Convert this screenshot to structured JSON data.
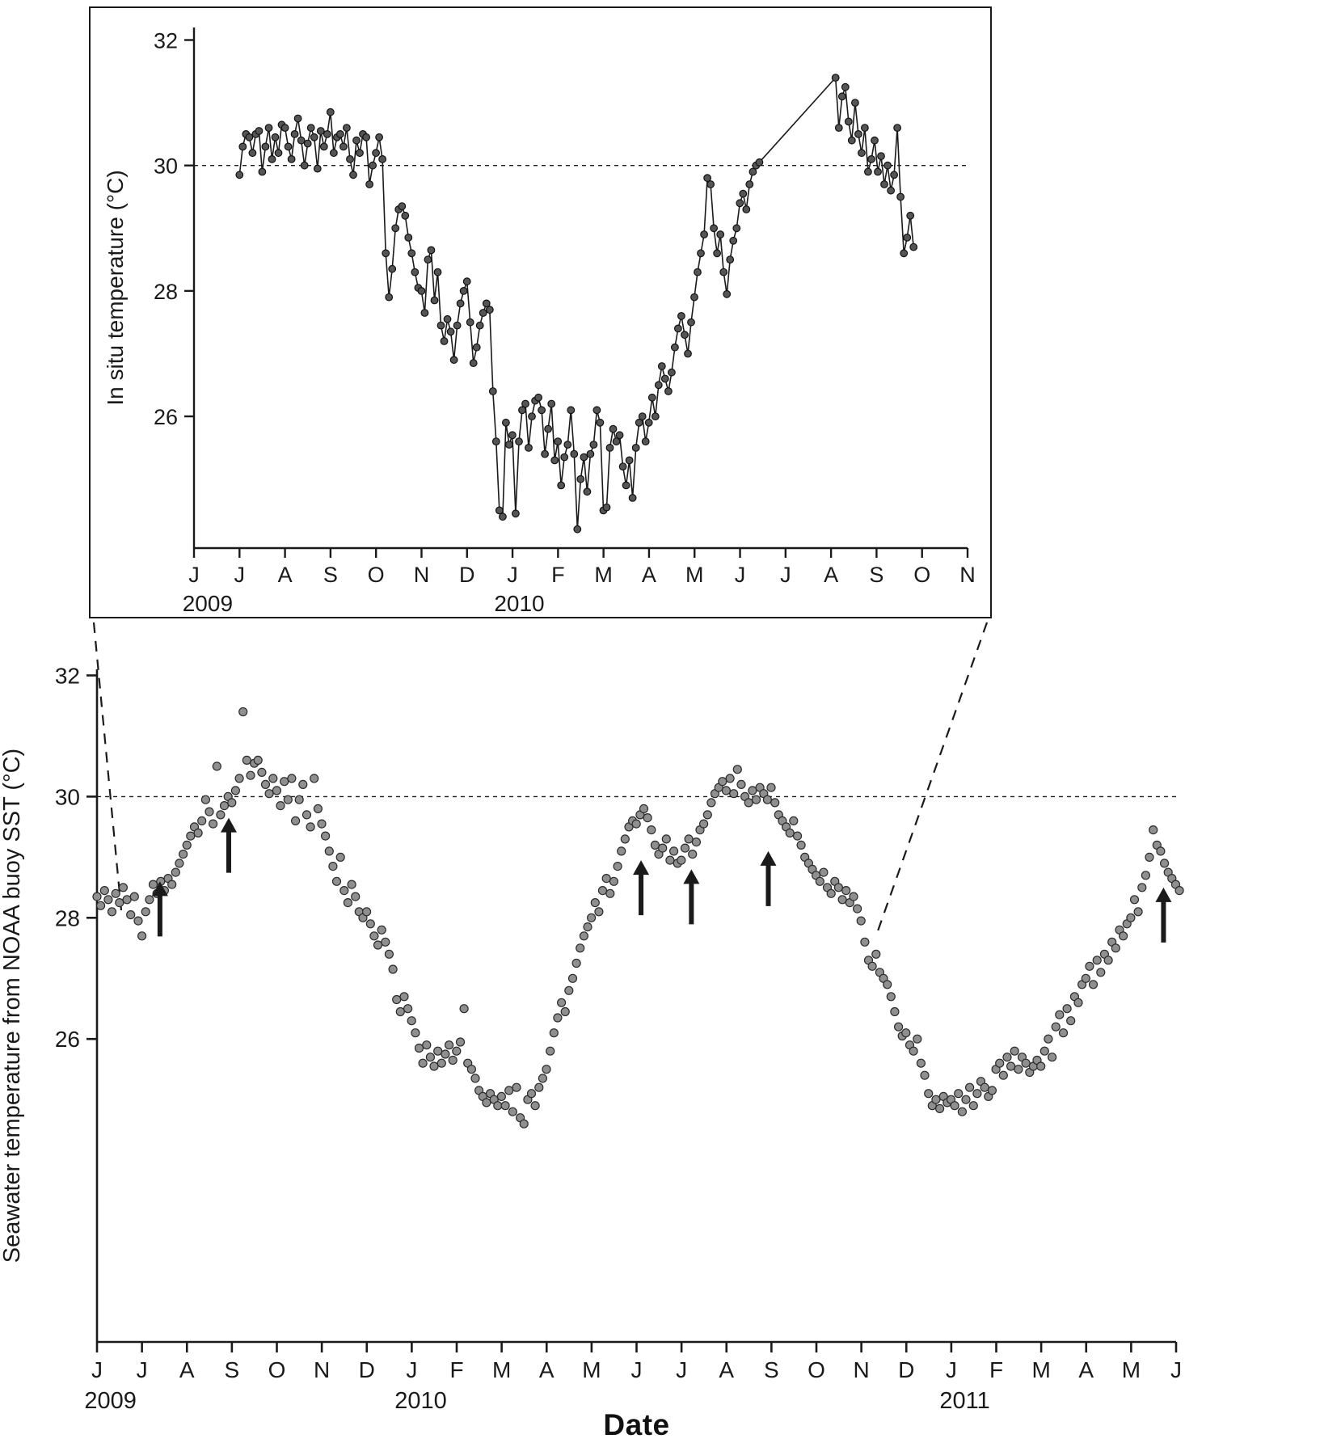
{
  "figure": {
    "xlabel": "Date",
    "background_color": "#ffffff",
    "ink_color": "#1a1a1a"
  },
  "chart_data": [
    {
      "id": "inset-in-situ",
      "type": "scatter",
      "connect_points": true,
      "title": "",
      "ylabel": "In situ temperature (°C)",
      "xlabel": "",
      "y_axis": {
        "ticks": [
          26,
          28,
          30,
          32
        ],
        "range": [
          23.9,
          32.2
        ]
      },
      "x_axis": {
        "domain": [
          0,
          17
        ],
        "tick_labels": [
          "J",
          "J",
          "A",
          "S",
          "O",
          "N",
          "D",
          "J",
          "F",
          "M",
          "A",
          "M",
          "J",
          "J",
          "A",
          "S",
          "O",
          "N"
        ],
        "year_labels": [
          {
            "label": "2009",
            "at_month": 0.3
          },
          {
            "label": "2010",
            "at_month": 7.15
          }
        ]
      },
      "reference_line_temp": 30,
      "style": {
        "ink": "#1a1a1a",
        "marker_fill": "#555555",
        "marker_stroke": "#111111"
      },
      "series": [
        {
          "name": "in-situ-temperature",
          "start_month": 1.0,
          "step_months": 0.0714,
          "values": [
            29.85,
            30.3,
            30.5,
            30.45,
            30.2,
            30.5,
            30.55,
            29.9,
            30.3,
            30.6,
            30.1,
            30.45,
            30.2,
            30.65,
            30.6,
            30.3,
            30.1,
            30.5,
            30.75,
            30.4,
            30.0,
            30.35,
            30.6,
            30.45,
            29.95,
            30.55,
            30.3,
            30.5,
            30.85,
            30.2,
            30.45,
            30.5,
            30.3,
            30.6,
            30.1,
            29.85,
            30.4,
            30.2,
            30.5,
            30.45,
            29.7,
            30.0,
            30.2,
            30.45,
            30.1,
            28.6,
            27.9,
            28.35,
            29.0,
            29.3,
            29.35,
            29.2,
            28.85,
            28.6,
            28.3,
            28.05,
            28.0,
            27.65,
            28.5,
            28.65,
            27.85,
            28.3,
            27.45,
            27.2,
            27.55,
            27.35,
            26.9,
            27.45,
            27.8,
            28.0,
            28.15,
            27.5,
            26.85,
            27.1,
            27.45,
            27.65,
            27.8,
            27.7,
            26.4,
            25.6,
            24.5,
            24.4,
            25.9,
            25.55,
            25.7,
            24.45,
            25.6,
            26.1,
            26.2,
            25.5,
            26.0,
            26.25,
            26.3,
            26.1,
            25.4,
            25.8,
            26.2,
            25.3,
            25.6,
            24.9,
            25.35,
            25.55,
            26.1,
            25.4,
            24.2,
            25.0,
            25.35,
            24.8,
            25.4,
            25.55,
            26.1,
            25.9,
            24.5,
            24.55,
            25.5,
            25.8,
            25.6,
            25.7,
            25.2,
            24.9,
            25.3,
            24.7,
            25.5,
            25.9,
            26.0,
            25.6,
            25.9,
            26.3,
            26.0,
            26.5,
            26.8,
            26.6,
            26.4,
            26.7,
            27.1,
            27.4,
            27.6,
            27.3,
            27.0,
            27.5,
            27.9,
            28.3,
            28.6,
            28.9,
            29.8,
            29.7,
            29.0,
            28.6,
            28.9,
            28.3,
            27.95,
            28.5,
            28.8,
            29.0,
            29.4,
            29.55,
            29.3,
            29.7,
            29.9,
            30.0,
            30.05
          ]
        },
        {
          "name": "in-situ-temperature-after-gap",
          "start_month": 14.1,
          "step_months": 0.0714,
          "values": [
            31.4,
            30.6,
            31.1,
            31.25,
            30.7,
            30.4,
            31.0,
            30.5,
            30.2,
            30.6,
            29.9,
            30.1,
            30.4,
            29.9,
            30.15,
            29.7,
            30.0,
            29.6,
            29.85,
            30.6,
            29.5,
            28.6,
            28.85,
            29.2,
            28.7
          ]
        }
      ]
    },
    {
      "id": "main-noaa-sst",
      "type": "scatter",
      "connect_points": false,
      "title": "",
      "ylabel": "Seawater temperature from NOAA buoy SST (°C)",
      "xlabel": "Date",
      "y_axis": {
        "ticks": [
          26,
          28,
          30,
          32
        ],
        "range": [
          21.0,
          32.1
        ]
      },
      "x_axis": {
        "domain": [
          0,
          24
        ],
        "tick_labels": [
          "J",
          "J",
          "A",
          "S",
          "O",
          "N",
          "D",
          "J",
          "F",
          "M",
          "A",
          "M",
          "J",
          "J",
          "A",
          "S",
          "O",
          "N",
          "D",
          "J",
          "F",
          "M",
          "A",
          "M",
          "J"
        ],
        "year_labels": [
          {
            "label": "2009",
            "at_month": 0.3
          },
          {
            "label": "2010",
            "at_month": 7.2
          },
          {
            "label": "2011",
            "at_month": 19.3
          }
        ]
      },
      "reference_line_temp": 30,
      "style": {
        "ink": "#1a1a1a",
        "marker_fill": "#8f8f8f",
        "marker_stroke": "#2b2b2b"
      },
      "arrows": [
        {
          "month": 1.4,
          "tip_temp": 28.6
        },
        {
          "month": 2.93,
          "tip_temp": 29.65
        },
        {
          "month": 12.1,
          "tip_temp": 28.95
        },
        {
          "month": 13.22,
          "tip_temp": 28.8
        },
        {
          "month": 14.93,
          "tip_temp": 29.1
        },
        {
          "month": 23.72,
          "tip_temp": 28.5
        }
      ],
      "series": [
        {
          "name": "noaa-buoy-sst",
          "start_month": 0.0,
          "step_months": 0.0833,
          "values": [
            28.35,
            28.2,
            28.45,
            28.3,
            28.1,
            28.4,
            28.25,
            28.5,
            28.3,
            28.05,
            28.35,
            27.95,
            27.7,
            28.1,
            28.3,
            28.55,
            28.4,
            28.6,
            28.45,
            28.65,
            28.55,
            28.75,
            28.9,
            29.05,
            29.2,
            29.35,
            29.5,
            29.4,
            29.6,
            29.95,
            29.75,
            29.55,
            30.5,
            29.7,
            29.85,
            30.0,
            29.9,
            30.1,
            30.3,
            31.4,
            30.6,
            30.35,
            30.55,
            30.6,
            30.4,
            30.2,
            30.05,
            30.3,
            30.1,
            29.85,
            30.25,
            29.95,
            30.3,
            29.6,
            29.95,
            30.2,
            29.7,
            29.5,
            30.3,
            29.8,
            29.55,
            29.35,
            29.1,
            28.85,
            28.6,
            29.0,
            28.45,
            28.25,
            28.55,
            28.35,
            28.1,
            28.0,
            28.1,
            27.9,
            27.7,
            27.55,
            27.8,
            27.6,
            27.4,
            27.15,
            26.65,
            26.45,
            26.7,
            26.5,
            26.3,
            26.1,
            25.85,
            25.6,
            25.9,
            25.7,
            25.55,
            25.8,
            25.6,
            25.75,
            25.9,
            25.65,
            25.8,
            25.95,
            26.5,
            25.6,
            25.5,
            25.35,
            25.15,
            25.05,
            24.95,
            25.1,
            25.0,
            24.9,
            25.05,
            24.9,
            25.15,
            24.8,
            25.2,
            24.7,
            24.6,
            25.0,
            25.1,
            24.9,
            25.2,
            25.35,
            25.5,
            25.8,
            26.1,
            26.35,
            26.6,
            26.45,
            26.8,
            27.0,
            27.25,
            27.5,
            27.7,
            27.85,
            28.0,
            28.25,
            28.1,
            28.45,
            28.65,
            28.4,
            28.6,
            28.85,
            29.1,
            29.3,
            29.5,
            29.6,
            29.55,
            29.7,
            29.8,
            29.65,
            29.45,
            29.2,
            29.05,
            29.15,
            29.3,
            28.95,
            29.1,
            28.9,
            28.95,
            29.15,
            29.3,
            29.05,
            29.25,
            29.45,
            29.55,
            29.7,
            29.9,
            30.05,
            30.15,
            30.25,
            30.1,
            30.3,
            30.05,
            30.45,
            30.2,
            30.0,
            29.9,
            30.1,
            29.95,
            30.15,
            30.05,
            29.95,
            30.15,
            29.9,
            29.7,
            29.6,
            29.5,
            29.4,
            29.6,
            29.35,
            29.2,
            29.0,
            28.9,
            28.8,
            28.7,
            28.6,
            28.75,
            28.5,
            28.4,
            28.6,
            28.5,
            28.3,
            28.45,
            28.25,
            28.35,
            28.15,
            27.95,
            27.6,
            27.3,
            27.2,
            27.4,
            27.1,
            27.0,
            26.9,
            26.7,
            26.45,
            26.2,
            26.05,
            26.1,
            25.9,
            25.8,
            26.0,
            25.6,
            25.4,
            25.1,
            24.9,
            25.0,
            24.85,
            25.05,
            24.95,
            25.0,
            24.9,
            25.1,
            24.8,
            25.0,
            25.2,
            24.9,
            25.1,
            25.3,
            25.2,
            25.05,
            25.15,
            25.5,
            25.6,
            25.4,
            25.7,
            25.55,
            25.8,
            25.5,
            25.7,
            25.6,
            25.45,
            25.55,
            25.65,
            25.55,
            25.8,
            26.0,
            25.7,
            26.2,
            26.4,
            26.1,
            26.5,
            26.3,
            26.7,
            26.6,
            26.9,
            27.0,
            27.2,
            26.9,
            27.3,
            27.1,
            27.4,
            27.3,
            27.6,
            27.5,
            27.8,
            27.7,
            27.9,
            28.0,
            28.3,
            28.1,
            28.5,
            28.7,
            29.0,
            29.45,
            29.2,
            29.1,
            28.9,
            28.75,
            28.65,
            28.55,
            28.45
          ]
        }
      ]
    }
  ]
}
